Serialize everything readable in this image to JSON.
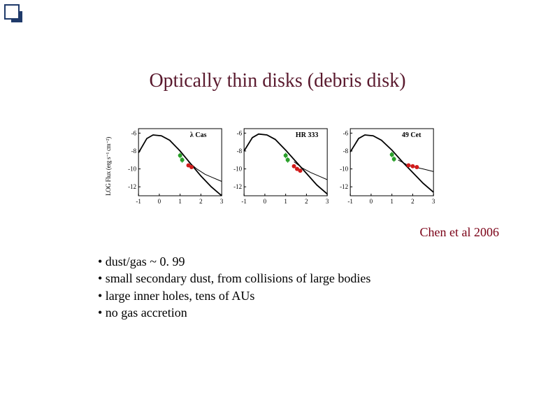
{
  "title": "Optically thin disks (debris disk)",
  "citation": "Chen et al 2006",
  "y_axis_label": "LOG Flux (erg s⁻¹ cm⁻²)",
  "bullets": {
    "b1": "• dust/gas ~ 0. 99",
    "b2": "• small secondary dust, from collisions of large bodies",
    "b3": "• large inner holes, tens of  AUs",
    "b4": "• no gas accretion"
  },
  "charts": [
    {
      "name": "λ Cas",
      "y_ticks": [
        -6,
        -8,
        -10,
        -12
      ],
      "x_ticks": [
        -1,
        0,
        1,
        2,
        3
      ],
      "curve_main": [
        {
          "x": -1.0,
          "y": -8.2
        },
        {
          "x": -0.6,
          "y": -6.6
        },
        {
          "x": -0.3,
          "y": -6.2
        },
        {
          "x": 0.1,
          "y": -6.3
        },
        {
          "x": 0.5,
          "y": -6.8
        },
        {
          "x": 1.0,
          "y": -8.0
        },
        {
          "x": 1.5,
          "y": -9.4
        },
        {
          "x": 2.0,
          "y": -10.8
        },
        {
          "x": 2.5,
          "y": -12.0
        },
        {
          "x": 3.0,
          "y": -13.0
        }
      ],
      "curve_alt": [
        {
          "x": 1.4,
          "y": -9.2
        },
        {
          "x": 1.8,
          "y": -10.0
        },
        {
          "x": 2.2,
          "y": -10.6
        },
        {
          "x": 2.6,
          "y": -11.0
        },
        {
          "x": 3.0,
          "y": -11.4
        }
      ],
      "points_green": [
        {
          "x": 1.0,
          "y": -8.5
        },
        {
          "x": 1.1,
          "y": -9.0
        }
      ],
      "points_red": [
        {
          "x": 1.4,
          "y": -9.6
        },
        {
          "x": 1.55,
          "y": -9.8
        }
      ],
      "colors": {
        "main": "#000000",
        "alt": "#000000",
        "green": "#2aa02a",
        "red": "#d11b1b"
      }
    },
    {
      "name": "HR 333",
      "y_ticks": [
        -6,
        -8,
        -10,
        -12
      ],
      "x_ticks": [
        -1,
        0,
        1,
        2,
        3
      ],
      "curve_main": [
        {
          "x": -1.0,
          "y": -8.0
        },
        {
          "x": -0.6,
          "y": -6.5
        },
        {
          "x": -0.3,
          "y": -6.1
        },
        {
          "x": 0.1,
          "y": -6.2
        },
        {
          "x": 0.5,
          "y": -6.7
        },
        {
          "x": 1.0,
          "y": -7.9
        },
        {
          "x": 1.5,
          "y": -9.2
        },
        {
          "x": 2.0,
          "y": -10.5
        },
        {
          "x": 2.5,
          "y": -11.8
        },
        {
          "x": 3.0,
          "y": -12.8
        }
      ],
      "curve_alt": [
        {
          "x": 1.4,
          "y": -9.2
        },
        {
          "x": 1.8,
          "y": -9.9
        },
        {
          "x": 2.2,
          "y": -10.4
        },
        {
          "x": 2.6,
          "y": -10.8
        },
        {
          "x": 3.0,
          "y": -11.2
        }
      ],
      "points_green": [
        {
          "x": 1.0,
          "y": -8.5
        },
        {
          "x": 1.1,
          "y": -9.0
        }
      ],
      "points_red": [
        {
          "x": 1.4,
          "y": -9.7
        },
        {
          "x": 1.55,
          "y": -10.0
        },
        {
          "x": 1.7,
          "y": -10.2
        }
      ],
      "colors": {
        "main": "#000000",
        "alt": "#000000",
        "green": "#2aa02a",
        "red": "#d11b1b"
      }
    },
    {
      "name": "49 Cet",
      "y_ticks": [
        -6,
        -8,
        -10,
        -12
      ],
      "x_ticks": [
        -1,
        0,
        1,
        2,
        3
      ],
      "curve_main": [
        {
          "x": -1.0,
          "y": -8.1
        },
        {
          "x": -0.6,
          "y": -6.6
        },
        {
          "x": -0.3,
          "y": -6.2
        },
        {
          "x": 0.1,
          "y": -6.3
        },
        {
          "x": 0.5,
          "y": -6.8
        },
        {
          "x": 1.0,
          "y": -7.9
        },
        {
          "x": 1.5,
          "y": -9.2
        },
        {
          "x": 2.0,
          "y": -10.4
        },
        {
          "x": 2.5,
          "y": -11.6
        },
        {
          "x": 3.0,
          "y": -12.6
        }
      ],
      "curve_alt": [
        {
          "x": 1.3,
          "y": -9.0
        },
        {
          "x": 1.7,
          "y": -9.5
        },
        {
          "x": 2.1,
          "y": -9.8
        },
        {
          "x": 2.5,
          "y": -10.0
        },
        {
          "x": 3.0,
          "y": -10.3
        }
      ],
      "points_green": [
        {
          "x": 1.0,
          "y": -8.4
        },
        {
          "x": 1.1,
          "y": -8.9
        }
      ],
      "points_red": [
        {
          "x": 1.8,
          "y": -9.6
        },
        {
          "x": 2.0,
          "y": -9.7
        },
        {
          "x": 2.2,
          "y": -9.8
        }
      ],
      "colors": {
        "main": "#000000",
        "alt": "#000000",
        "green": "#2aa02a",
        "red": "#d11b1b"
      }
    }
  ],
  "chart_style": {
    "xlim": [
      -1,
      3
    ],
    "ylim": [
      -13,
      -5.5
    ],
    "axis_color": "#000000",
    "tick_fontsize": 9,
    "name_fontsize": 10,
    "line_width_main": 1.8,
    "line_width_alt": 1.0,
    "marker_size": 3
  }
}
